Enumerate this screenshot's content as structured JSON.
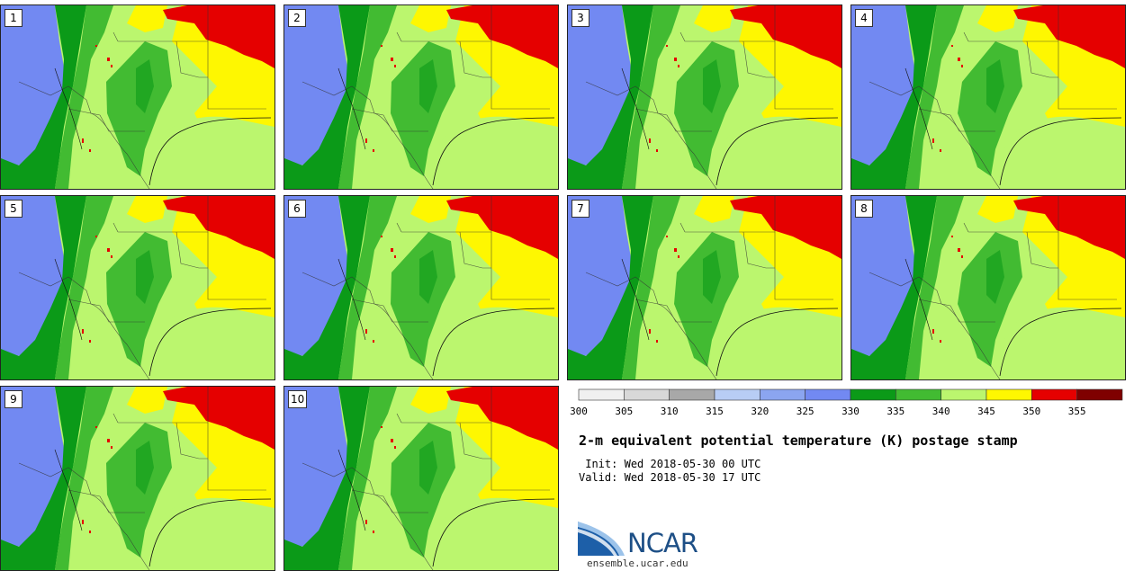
{
  "title": "2-m equivalent potential temperature (K) postage stamp",
  "init_label": " Init:",
  "init_value": "Wed 2018-05-30 00 UTC",
  "valid_label": "Valid:",
  "valid_value": "Wed 2018-05-30 17 UTC",
  "members": [
    "1",
    "2",
    "3",
    "4",
    "5",
    "6",
    "7",
    "8",
    "9",
    "10"
  ],
  "colorbar": {
    "colors": [
      "#f0f0f0",
      "#d8d8d8",
      "#a8a8a8",
      "#b8cdf5",
      "#8ba5f0",
      "#7289f2",
      "#0b9a18",
      "#42bb32",
      "#bbf66e",
      "#fef701",
      "#e50000",
      "#7f0000"
    ],
    "ticks": [
      "300",
      "305",
      "310",
      "315",
      "320",
      "325",
      "330",
      "335",
      "340",
      "345",
      "350",
      "355"
    ]
  },
  "palette": {
    "low": "#7289f2",
    "dark_green": "#0b9a18",
    "green": "#42bb32",
    "light_green": "#bbf66e",
    "yellow": "#fef701",
    "red": "#e50000"
  },
  "logo": {
    "text": "NCAR",
    "site": "ensemble.ucar.edu"
  }
}
